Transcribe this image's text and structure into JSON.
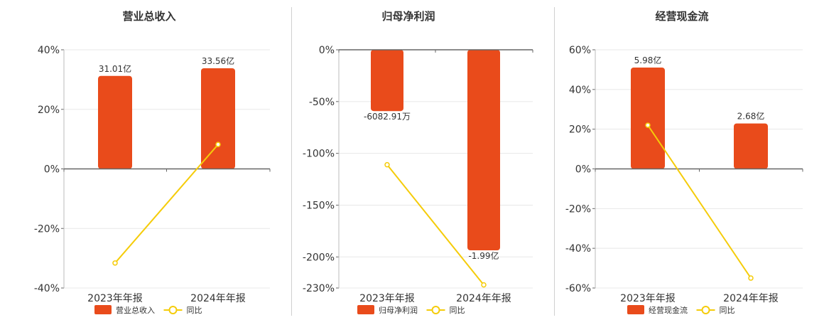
{
  "colors": {
    "bar": "#e94b1b",
    "line": "#f5cc0a",
    "axis": "#666666",
    "grid": "#e8e8e8"
  },
  "legend": {
    "bar_icon": "bar-swatch",
    "line_icon": "line-circle-marker"
  },
  "chart_data": [
    {
      "type": "bar",
      "title": "营业总收入",
      "categories": [
        "2023年年报",
        "2024年年报"
      ],
      "ylim": [
        -40,
        40
      ],
      "yticks": [
        40,
        20,
        0,
        -20,
        -40
      ],
      "ytick_labels": [
        "40%",
        "20%",
        "0%",
        "-20%",
        "-40%"
      ],
      "series": [
        {
          "name": "营业总收入",
          "kind": "bar",
          "values": [
            31.01,
            33.56
          ],
          "labels": [
            "31.01亿",
            "33.56亿"
          ]
        },
        {
          "name": "同比",
          "kind": "line",
          "values": [
            -31.6,
            8.2
          ]
        }
      ],
      "grid": true
    },
    {
      "type": "bar",
      "title": "归母净利润",
      "categories": [
        "2023年年报",
        "2024年年报"
      ],
      "ylim": [
        -230,
        0
      ],
      "yticks": [
        0,
        -50,
        -100,
        -150,
        -200,
        -230
      ],
      "ytick_labels": [
        "0%",
        "-50%",
        "-100%",
        "-150%",
        "-200%",
        "-230%"
      ],
      "series": [
        {
          "name": "归母净利润",
          "kind": "bar",
          "values": [
            -0.6083,
            -1.99
          ],
          "labels": [
            "-6082.91万",
            "-1.99亿"
          ]
        },
        {
          "name": "同比",
          "kind": "line",
          "values": [
            -111,
            -227
          ]
        }
      ],
      "grid": true
    },
    {
      "type": "bar",
      "title": "经营现金流",
      "categories": [
        "2023年年报",
        "2024年年报"
      ],
      "ylim": [
        -60,
        60
      ],
      "yticks": [
        60,
        40,
        20,
        0,
        -20,
        -40,
        -60
      ],
      "ytick_labels": [
        "60%",
        "40%",
        "20%",
        "0%",
        "-20%",
        "-40%",
        "-60%"
      ],
      "series": [
        {
          "name": "经营现金流",
          "kind": "bar",
          "values": [
            5.98,
            2.68
          ],
          "labels": [
            "5.98亿",
            "2.68亿"
          ]
        },
        {
          "name": "同比",
          "kind": "line",
          "values": [
            22,
            -55
          ]
        }
      ],
      "grid": true
    }
  ]
}
